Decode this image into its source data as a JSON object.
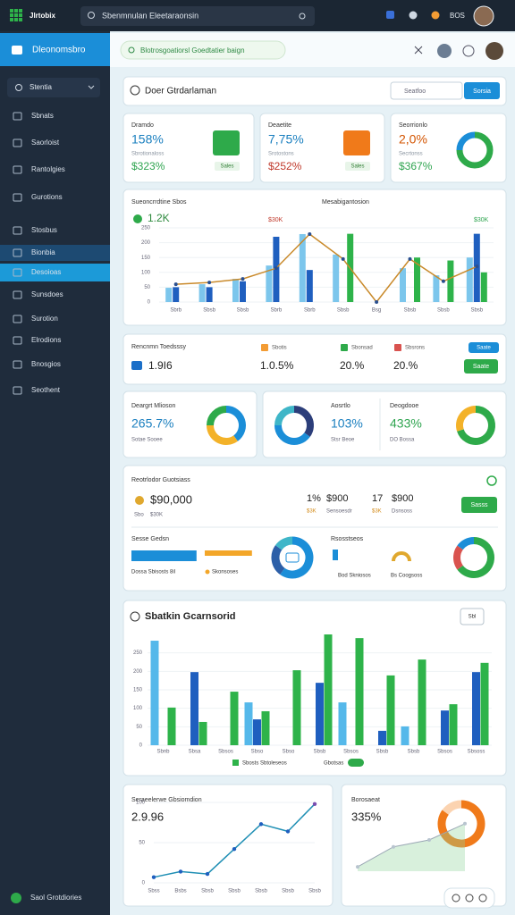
{
  "topbar": {
    "brand": "Jlrtobix",
    "search": "Sbenmnulan Eleetaraonsin",
    "user": "BOS"
  },
  "sidebar": {
    "header": "Dleonomsbro",
    "select": "Stentia",
    "items": [
      "Sbnats",
      "Saorloist",
      "Rantolgies",
      "Gurotions",
      "Stosbus",
      "Bionbia",
      "Desoioas",
      "Sunsdoes",
      "Surotion",
      "Elrodions",
      "Bnosgios",
      "Seothent"
    ],
    "footer": "Saol Grotdiories"
  },
  "breadcrumb": "Blotrosgoatiorsl Goedtatier baign",
  "title_bar": {
    "title": "Doer Gtrdarlaman",
    "search": "Seatfoo",
    "button": "Sorsia"
  },
  "kpis": [
    {
      "title": "Dramdo",
      "value": "158%",
      "sub": "Sbrotionaloss",
      "amount": "$323%",
      "badge": "Sales"
    },
    {
      "title": "Deaetite",
      "value": "7,75%",
      "sub": "Srotostons",
      "amount": "$252%",
      "badge": "Sales"
    },
    {
      "title": "Seorrionlo",
      "value": "2,0%",
      "sub": "Secrtonss",
      "amount": "$367%",
      "donut": {
        "values": [
          75,
          25
        ],
        "colors": [
          "#2eaa4a",
          "#1b8ed8"
        ]
      }
    }
  ],
  "combo_chart": {
    "title": "Sueoncrrdtine Sbos",
    "title2": "Mesabigantosion",
    "value": "1.2K",
    "note1": "$30K",
    "note2": "$30K",
    "categories": [
      "Sbrb",
      "Sbsb",
      "Sbsb",
      "Sbrb",
      "Sbrb",
      "Sbsb",
      "Bsg",
      "Sbsb",
      "Sbsb",
      "Sbsb"
    ],
    "ylim": [
      0,
      250
    ],
    "yticks": [
      0,
      50,
      100,
      150,
      200,
      250
    ],
    "series": [
      {
        "color": "#7cc6ec",
        "values": [
          48,
          60,
          78,
          123,
          229,
          160,
          null,
          114,
          90,
          150
        ]
      },
      {
        "color": "#1f5fbf",
        "values": [
          50,
          50,
          70,
          220,
          108,
          null,
          null,
          null,
          null,
          230
        ]
      },
      {
        "color": "#2eb34a",
        "values": [
          null,
          null,
          null,
          null,
          null,
          230,
          null,
          150,
          140,
          100
        ]
      }
    ],
    "line": {
      "color": "#c98a2b",
      "values": [
        60,
        66,
        78,
        114,
        229,
        145,
        0,
        145,
        70,
        120
      ]
    }
  },
  "summary": {
    "title": "Rencnmn Toedsssy",
    "value": "1.9I6",
    "top_button": "Saate",
    "button": "Saate",
    "items": [
      {
        "label": "Sbotis",
        "value": "1.0.5%",
        "color": "#f39c34"
      },
      {
        "label": "Sbonsad",
        "value": "20.%",
        "color": "#2eaa4a"
      },
      {
        "label": "Sbsrons",
        "value": "20.%",
        "color": "#d9534f"
      }
    ]
  },
  "stats": [
    {
      "title": "Deargrt Mlioson",
      "value": "265.7%",
      "sub": "Sotae Sooee",
      "donut": {
        "values": [
          40,
          35,
          25
        ],
        "colors": [
          "#1b8ed8",
          "#f3b229",
          "#2eaa4a"
        ]
      }
    },
    {
      "title": "Aosrtlo",
      "value": "103%",
      "sub": "Stsr Beoe",
      "donut": {
        "values": [
          35,
          40,
          25
        ],
        "colors": [
          "#2c3e7a",
          "#1b8ed8",
          "#3fb6c8"
        ]
      }
    },
    {
      "title": "Deogdooe",
      "value": "433%",
      "sub": "DO Bossa",
      "donut": {
        "values": [
          70,
          30
        ],
        "colors": [
          "#2eaa4a",
          "#f3b229"
        ]
      }
    }
  ],
  "revenue": {
    "title": "Reotrlodor Guotsiass",
    "main_value": "$90,000",
    "main_sub": "Sbo",
    "main_sub2": "$30K",
    "metrics": [
      {
        "count": "1%",
        "value": "$900",
        "note": "$3K",
        "label": "Sensoesdr"
      },
      {
        "count": "17",
        "value": "$900",
        "note": "$3K",
        "label": "Dsnsoss"
      }
    ],
    "button": "Sasss",
    "left_title": "Sesse Gedsn",
    "progress": [
      {
        "value": 91,
        "color": "#1b8ed8"
      },
      {
        "value": 66,
        "color": "#f3a629"
      }
    ],
    "legend": [
      "Dossa Sbisosts 8il",
      "Skonsoses"
    ],
    "donut1": {
      "values": [
        60,
        25,
        15
      ],
      "colors": [
        "#1b8ed8",
        "#2c5fa8",
        "#3fb6c8"
      ]
    },
    "right_title": "Rsosstseos",
    "right_labels": [
      "Bod Skniosos",
      "Bs Coogsoss"
    ],
    "donut2": {
      "values": [
        65,
        20,
        15
      ],
      "colors": [
        "#2eaa4a",
        "#d9534f",
        "#1b8ed8"
      ]
    }
  },
  "bar_chart": {
    "title": "Sbatkin Gcarnsorid",
    "select": "Sbl",
    "categories": [
      "Sbnb",
      "Sbsa",
      "Sbsos",
      "Sbso",
      "Sbso",
      "Sbsb",
      "Sbsos",
      "Sbsb",
      "Sbsb",
      "Sbsos",
      "Sbsoss"
    ],
    "ylim": [
      0,
      300
    ],
    "yticks": [
      0,
      50,
      100,
      150,
      200,
      250
    ],
    "series": [
      {
        "color": "#55b8ea",
        "values": [
          283,
          null,
          null,
          116,
          null,
          null,
          116,
          null,
          51,
          null,
          null
        ]
      },
      {
        "color": "#1f5fbf",
        "values": [
          null,
          198,
          null,
          70,
          null,
          169,
          null,
          39,
          null,
          94,
          198
        ]
      },
      {
        "color": "#2eb34a",
        "values": [
          102,
          63,
          145,
          92,
          203,
          300,
          290,
          189,
          232,
          111,
          223
        ]
      }
    ],
    "legend": "Sbosts Sbtoleseos",
    "toggle_label": "Gbotsas"
  },
  "trend": {
    "title": "Seraeelerwe Gbsiomdion",
    "value": "2.9.96",
    "categories": [
      "Sbss",
      "Bsbs",
      "Sbsb",
      "Sbsb",
      "Sbsb",
      "Sbsb",
      "Sbsb"
    ],
    "ylim": [
      0,
      100
    ],
    "yticks": [
      0,
      50,
      100
    ],
    "color": "#1f8fb4",
    "values": [
      7,
      14,
      11,
      42,
      73,
      64,
      98
    ]
  },
  "forecast": {
    "title": "Borosaeat",
    "value": "335%",
    "ylim": [
      0,
      100
    ],
    "color": "#8fd39a",
    "values": [
      7,
      39,
      50,
      76
    ],
    "donut": {
      "values": [
        85,
        15
      ],
      "colors": [
        "#f07a1a",
        "#fbd3b0"
      ]
    }
  }
}
